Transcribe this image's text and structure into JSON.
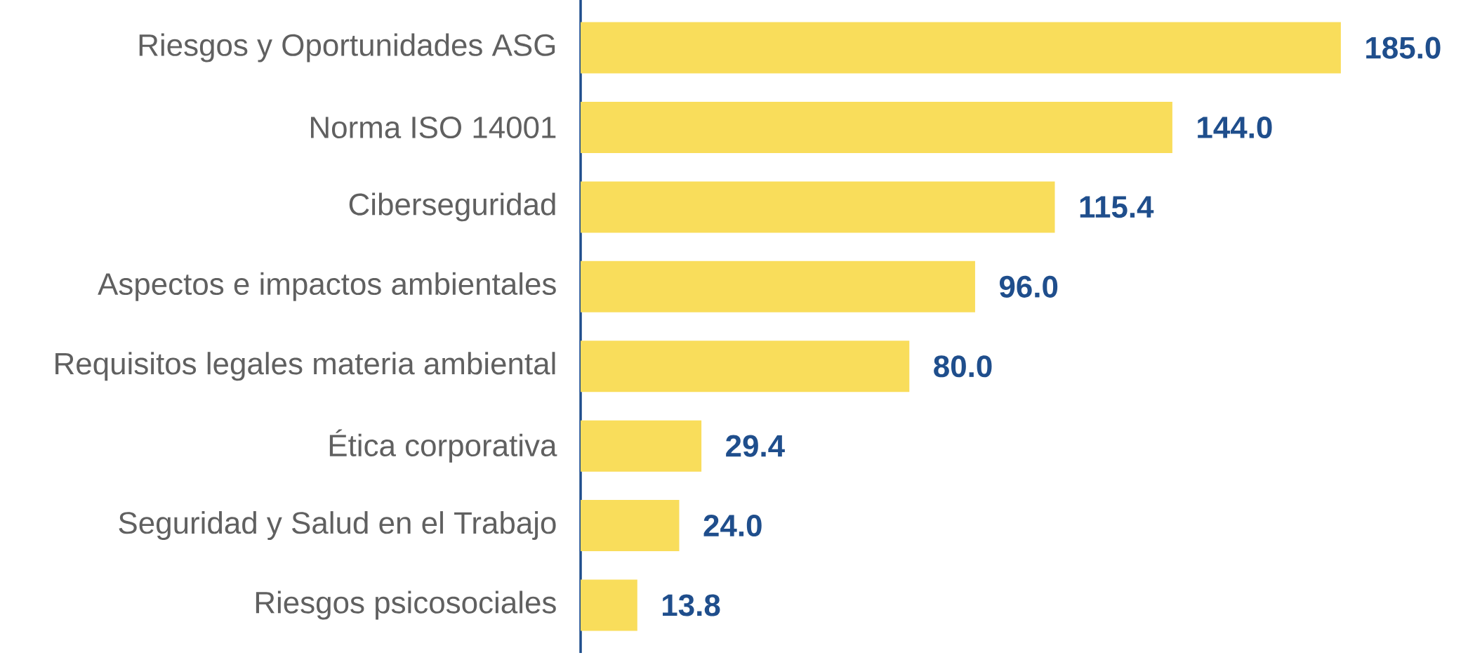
{
  "chart_data": {
    "type": "bar",
    "orientation": "horizontal",
    "categories": [
      "Riesgos y Oportunidades ASG",
      "Norma ISO 14001",
      "Ciberseguridad",
      "Aspectos e impactos ambientales",
      "Requisitos legales materia ambiental",
      "Ética corporativa",
      "Seguridad y Salud en el Trabajo",
      "Riesgos psicosociales"
    ],
    "values": [
      185.0,
      144.0,
      115.4,
      96.0,
      80.0,
      29.4,
      24.0,
      13.8
    ],
    "value_labels": [
      "185.0",
      "144.0",
      "115.4",
      "96.0",
      "80.0",
      "29.4",
      "24.0",
      "13.8"
    ],
    "color": "#f9dd5b"
  }
}
